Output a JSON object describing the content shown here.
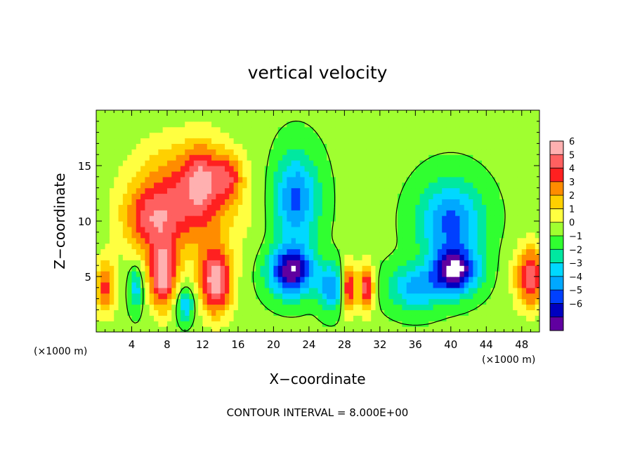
{
  "chart_data": {
    "type": "heatmap",
    "title": "vertical velocity",
    "xlabel": "X−coordinate",
    "ylabel": "Z−coordinate",
    "x_unit": "(×1000 m)",
    "x_unit_right": "(×1000 m)",
    "xlim": [
      0,
      50
    ],
    "ylim": [
      0,
      20
    ],
    "x_ticks": [
      4,
      8,
      12,
      16,
      20,
      24,
      28,
      32,
      36,
      40,
      44,
      48
    ],
    "y_ticks": [
      5,
      10,
      15
    ],
    "colorbar": {
      "levels": [
        6,
        5,
        4,
        3,
        2,
        1,
        0,
        -1,
        -2,
        -3,
        -4,
        -5,
        -6
      ],
      "labels": [
        "6",
        "5",
        "4",
        "3",
        "2",
        "1",
        "0",
        "−1",
        "−2",
        "−3",
        "−4",
        "−5",
        "−6"
      ],
      "colors": [
        "#ffb0b0",
        "#ff6060",
        "#ff2020",
        "#ff8c00",
        "#ffd000",
        "#ffff40",
        "#a0ff30",
        "#30ff30",
        "#00e8a0",
        "#00d8ff",
        "#00a8ff",
        "#0040ff",
        "#0000c0",
        "#6000a0"
      ]
    },
    "cells": [
      {
        "x": 10,
        "z": 12,
        "sx": 6,
        "sz": 5,
        "w": 4.5
      },
      {
        "x": 6,
        "z": 10,
        "sx": 3,
        "sz": 3,
        "w": 3
      },
      {
        "x": 7.5,
        "z": 5,
        "sx": 1.6,
        "sz": 3,
        "w": 6
      },
      {
        "x": 13.5,
        "z": 4.5,
        "sx": 1.8,
        "sz": 3,
        "w": 6.5
      },
      {
        "x": 12,
        "z": 14,
        "sx": 2,
        "sz": 3,
        "w": 3
      },
      {
        "x": 15,
        "z": 14,
        "sx": 1.5,
        "sz": 2,
        "w": 3
      },
      {
        "x": 1,
        "z": 4,
        "sx": 1.2,
        "sz": 2.5,
        "w": 4
      },
      {
        "x": 28.5,
        "z": 4,
        "sx": 0.8,
        "sz": 2.2,
        "w": 5.5
      },
      {
        "x": 30.5,
        "z": 4,
        "sx": 0.8,
        "sz": 2.2,
        "w": 5.5
      },
      {
        "x": 49,
        "z": 5,
        "sx": 1.8,
        "sz": 2.8,
        "w": 5.5
      },
      {
        "x": 22.5,
        "z": 12,
        "sx": 2.5,
        "sz": 4,
        "w": -4.5
      },
      {
        "x": 22,
        "z": 5.5,
        "sx": 2.5,
        "sz": 2.2,
        "w": -7
      },
      {
        "x": 26.5,
        "z": 4,
        "sx": 1.4,
        "sz": 2,
        "w": -4
      },
      {
        "x": 40,
        "z": 10,
        "sx": 3.5,
        "sz": 3.5,
        "w": -4.5
      },
      {
        "x": 40.5,
        "z": 5.5,
        "sx": 2.5,
        "sz": 2,
        "w": -7
      },
      {
        "x": 36,
        "z": 4,
        "sx": 3,
        "sz": 2,
        "w": -3.5
      },
      {
        "x": 4.5,
        "z": 4,
        "sx": 0.8,
        "sz": 2,
        "w": -3
      },
      {
        "x": 10,
        "z": 2.5,
        "sx": 1,
        "sz": 1.5,
        "w": -3.5
      }
    ],
    "contour_interval_text": "CONTOUR INTERVAL =  8.000E+00"
  }
}
